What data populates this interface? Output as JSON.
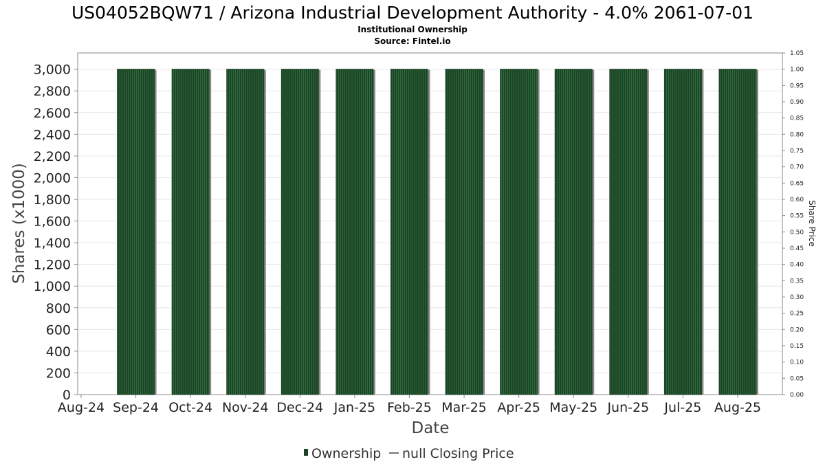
{
  "header": {
    "title": "US04052BQW71 / Arizona Industrial Development Authority - 4.0% 2061-07-01",
    "subtitle": "Institutional Ownership",
    "source": "Source: Fintel.io"
  },
  "legend": {
    "ownership_label": "Ownership",
    "price_label": "null Closing Price"
  },
  "colors": {
    "bar": "#1d4426",
    "bar_stripe": "#2e6b3c",
    "bar_shadow": "#8a8a8a",
    "grid": "#e6e6e6"
  },
  "chart_data": {
    "type": "bar",
    "title": "US04052BQW71 / Arizona Industrial Development Authority - 4.0% 2061-07-01",
    "subtitle": "Institutional Ownership",
    "xlabel": "Date",
    "ylabel": "Shares (x1000)",
    "y2label": "Share Price",
    "x_tick_labels": [
      "Aug-24",
      "Sep-24",
      "Oct-24",
      "Nov-24",
      "Dec-24",
      "Jan-25",
      "Feb-25",
      "Mar-25",
      "Apr-25",
      "May-25",
      "Jun-25",
      "Jul-25",
      "Aug-25"
    ],
    "categories": [
      "Sep-24",
      "Oct-24",
      "Nov-24",
      "Dec-24",
      "Jan-25",
      "Feb-25",
      "Mar-25",
      "Apr-25",
      "May-25",
      "Jun-25",
      "Jul-25",
      "Aug-25"
    ],
    "series": [
      {
        "name": "Ownership",
        "values": [
          3000,
          3000,
          3000,
          3000,
          3000,
          3000,
          3000,
          3000,
          3000,
          3000,
          3000,
          3000
        ]
      }
    ],
    "ylim": [
      0,
      3150
    ],
    "yticks": [
      0,
      200,
      400,
      600,
      800,
      1000,
      1200,
      1400,
      1600,
      1800,
      2000,
      2200,
      2400,
      2600,
      2800,
      3000
    ],
    "ytick_labels": [
      "0",
      "200",
      "400",
      "600",
      "800",
      "1,000",
      "1,200",
      "1,400",
      "1,600",
      "1,800",
      "2,000",
      "2,200",
      "2,400",
      "2,600",
      "2,800",
      "3,000"
    ],
    "y2lim": [
      0,
      1.05
    ],
    "y2ticks": [
      0,
      0.05,
      0.1,
      0.15,
      0.2,
      0.25,
      0.3,
      0.35,
      0.4,
      0.45,
      0.5,
      0.55,
      0.6,
      0.65,
      0.7,
      0.75,
      0.8,
      0.85,
      0.9,
      0.95,
      1.0,
      1.05
    ],
    "y2tick_labels": [
      "0.00",
      "0.05",
      "0.10",
      "0.15",
      "0.20",
      "0.25",
      "0.30",
      "0.35",
      "0.40",
      "0.45",
      "0.50",
      "0.55",
      "0.60",
      "0.65",
      "0.70",
      "0.75",
      "0.80",
      "0.85",
      "0.90",
      "0.95",
      "1.00",
      "1.05"
    ],
    "grid": true,
    "legend_position": "bottom"
  }
}
